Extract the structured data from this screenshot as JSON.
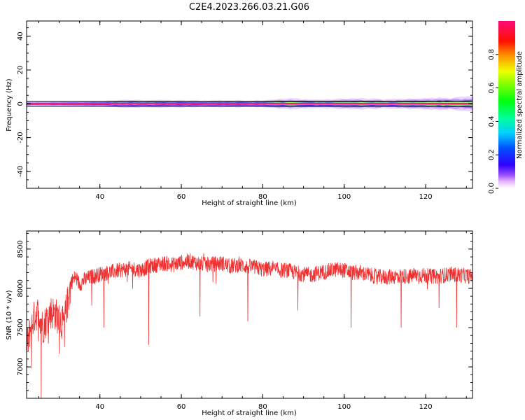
{
  "figure": {
    "title": "C2E4.2023.266.03.21.G06"
  },
  "chart_data": [
    {
      "type": "heatmap",
      "xlabel": "Height of straight line (km)",
      "ylabel": "Frequency (Hz)",
      "xlim": [
        22,
        131.5
      ],
      "ylim": [
        -50,
        49
      ],
      "xticks": [
        40,
        60,
        80,
        100,
        120
      ],
      "yticks": [
        -40,
        -20,
        0,
        20,
        40
      ],
      "ytick_labels": [
        "-40",
        "-20",
        "0",
        "20",
        "40"
      ],
      "guide_lines_hz": [
        -1.5,
        1.5
      ],
      "signal_frequency_hz": 0,
      "spread_profile": {
        "x": [
          22,
          30,
          40,
          44,
          50,
          55,
          60,
          65,
          70,
          75,
          80,
          84,
          88,
          92,
          96,
          100,
          104,
          108,
          112,
          116,
          120,
          124,
          128,
          131.5
        ],
        "halfwidth_hz": [
          1.2,
          1.3,
          1.6,
          2.2,
          2.3,
          2.2,
          2.0,
          1.9,
          2.1,
          2.0,
          2.2,
          2.8,
          3.2,
          2.5,
          2.6,
          3.0,
          3.2,
          2.8,
          2.7,
          3.0,
          3.3,
          3.6,
          3.8,
          4.0
        ]
      },
      "colorbar": {
        "label": "Normalized spectral amplitude",
        "range": [
          0,
          1
        ],
        "ticks": [
          0.0,
          0.2,
          0.4,
          0.6,
          0.8
        ],
        "tick_labels": [
          "0.0",
          "0.2",
          "0.4",
          "0.6",
          "0.8"
        ],
        "colormap": "gist_rainbow_r"
      }
    },
    {
      "type": "line",
      "xlabel": "Height of straight line (km)",
      "ylabel": "SNR (10 * v/v)",
      "xlim": [
        22,
        131.5
      ],
      "ylim": [
        6600,
        8730
      ],
      "xticks": [
        40,
        60,
        80,
        100,
        120
      ],
      "yticks": [
        7000,
        7500,
        8000,
        8500
      ],
      "ytick_labels": [
        "7000",
        "7500",
        "8000",
        "8500"
      ],
      "color": "#f03030",
      "series": [
        {
          "x": [
            22,
            23,
            24,
            25,
            26,
            27,
            28,
            29,
            30,
            31,
            32,
            33,
            34,
            35,
            36,
            38,
            40,
            42,
            44,
            46,
            48,
            50,
            52,
            54,
            56,
            58,
            60,
            62,
            64,
            66,
            68,
            70,
            72,
            74,
            76,
            78,
            80,
            82,
            84,
            86,
            88,
            90,
            92,
            94,
            96,
            98,
            100,
            102,
            104,
            106,
            108,
            110,
            112,
            114,
            116,
            118,
            120,
            122,
            124,
            126,
            128,
            130,
            131.5
          ],
          "values": [
            7250,
            7500,
            7650,
            7700,
            7500,
            7620,
            7700,
            7680,
            7600,
            7550,
            7800,
            8080,
            8150,
            8050,
            8100,
            8150,
            8180,
            8200,
            8220,
            8240,
            8250,
            8230,
            8280,
            8300,
            8320,
            8300,
            8330,
            8350,
            8320,
            8300,
            8310,
            8320,
            8280,
            8300,
            8280,
            8270,
            8240,
            8250,
            8230,
            8230,
            8200,
            8180,
            8170,
            8200,
            8220,
            8240,
            8230,
            8200,
            8200,
            8170,
            8150,
            8140,
            8150,
            8160,
            8150,
            8170,
            8160,
            8150,
            8160,
            8180,
            8170,
            8160,
            8150
          ],
          "noise_amplitude": 100,
          "dips": [
            {
              "x": 23.2,
              "value": 6980
            },
            {
              "x": 25.6,
              "value": 6600
            },
            {
              "x": 31.3,
              "value": 7250
            },
            {
              "x": 38.0,
              "value": 7780
            },
            {
              "x": 41.0,
              "value": 7500
            },
            {
              "x": 52.0,
              "value": 7280
            },
            {
              "x": 64.6,
              "value": 7640
            },
            {
              "x": 76.3,
              "value": 7580
            },
            {
              "x": 88.6,
              "value": 7720
            },
            {
              "x": 101.7,
              "value": 7500
            },
            {
              "x": 114.0,
              "value": 7500
            },
            {
              "x": 123.3,
              "value": 7750
            },
            {
              "x": 127.6,
              "value": 7500
            }
          ]
        }
      ]
    }
  ]
}
